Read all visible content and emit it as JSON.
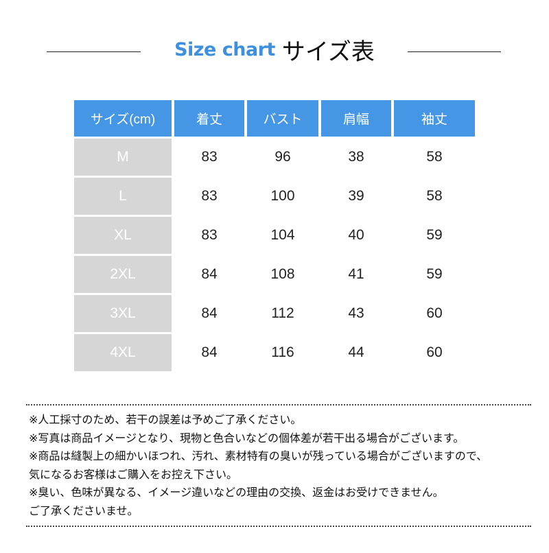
{
  "title": {
    "en": "Size chart",
    "jp": "サイズ表"
  },
  "colors": {
    "header": "#4696e6",
    "size_cell": "#d6d6d6",
    "title_accent": "#3d8fe0"
  },
  "table": {
    "headers": [
      "サイズ(cm)",
      "着丈",
      "バスト",
      "肩幅",
      "袖丈"
    ],
    "rows": [
      [
        "M",
        "83",
        "96",
        "38",
        "58"
      ],
      [
        "L",
        "83",
        "100",
        "39",
        "58"
      ],
      [
        "XL",
        "83",
        "104",
        "40",
        "59"
      ],
      [
        "2XL",
        "84",
        "108",
        "41",
        "59"
      ],
      [
        "3XL",
        "84",
        "112",
        "43",
        "60"
      ],
      [
        "4XL",
        "84",
        "116",
        "44",
        "60"
      ]
    ]
  },
  "notes": [
    "※人工採寸のため、若干の誤差は予めご了承ください。",
    "※写真は商品イメージとなり、現物と色合いなどの個体差が若干出る場合がございます。",
    "※商品は縫製上の細かいほつれ、汚れ、素材特有の臭いが残っている場合がございますので、",
    "気になるお客様はご購入をお控え下さい。",
    "※臭い、色味が異なる、イメージ違いなどの理由の交換、返金はお受けできません。",
    "ご了承くださいませ。"
  ]
}
